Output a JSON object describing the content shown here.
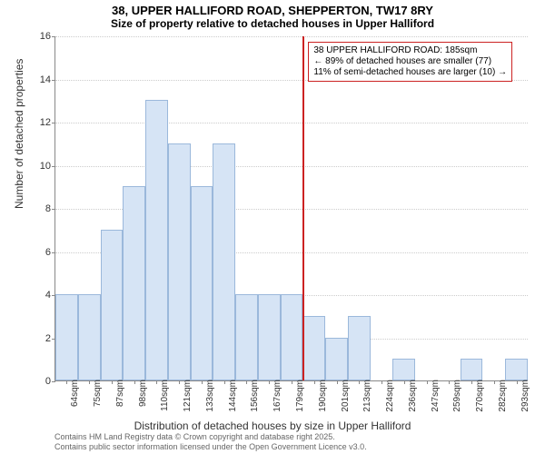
{
  "titles": {
    "line1": "38, UPPER HALLIFORD ROAD, SHEPPERTON, TW17 8RY",
    "line2": "Size of property relative to detached houses in Upper Halliford"
  },
  "axes": {
    "ylabel": "Number of detached properties",
    "xlabel": "Distribution of detached houses by size in Upper Halliford",
    "ylim": [
      0,
      16
    ],
    "ytick_step": 2,
    "ytick_labels": [
      "0",
      "2",
      "4",
      "6",
      "8",
      "10",
      "12",
      "14",
      "16"
    ],
    "xtick_labels": [
      "64sqm",
      "75sqm",
      "87sqm",
      "98sqm",
      "110sqm",
      "121sqm",
      "133sqm",
      "144sqm",
      "156sqm",
      "167sqm",
      "179sqm",
      "190sqm",
      "201sqm",
      "213sqm",
      "224sqm",
      "236sqm",
      "247sqm",
      "259sqm",
      "270sqm",
      "282sqm",
      "293sqm"
    ],
    "label_fontsize": 12,
    "tick_fontsize": 10
  },
  "histogram": {
    "type": "histogram",
    "bar_color": "#d6e4f5",
    "bar_border_color": "#9bb8db",
    "values": [
      4,
      4,
      7,
      9,
      13,
      11,
      9,
      11,
      4,
      4,
      4,
      3,
      2,
      3,
      0,
      1,
      0,
      0,
      1,
      0,
      1
    ],
    "bar_count": 21
  },
  "marker": {
    "position_index": 11,
    "line_color": "#cc2222",
    "annotation": {
      "line1": "38 UPPER HALLIFORD ROAD: 185sqm",
      "line2": "← 89% of detached houses are smaller (77)",
      "line3": "11% of semi-detached houses are larger (10) →"
    }
  },
  "attribution": {
    "line1": "Contains HM Land Registry data © Crown copyright and database right 2025.",
    "line2": "Contains public sector information licensed under the Open Government Licence v3.0."
  },
  "colors": {
    "background": "#ffffff",
    "grid": "#cccccc",
    "axis": "#888888",
    "text": "#333333",
    "attribution_text": "#666666"
  }
}
